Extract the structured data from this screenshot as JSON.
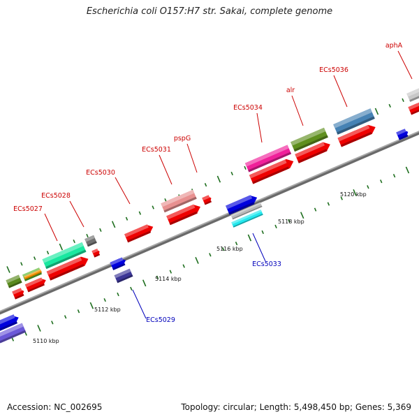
{
  "title": "Escherichia coli O157:H7 str. Sakai, complete genome",
  "footer": {
    "accession": "Accession: NC_002695",
    "summary": "Topology: circular; Length: 5,498,450 bp; Genes: 5,369"
  },
  "colors": {
    "backbone": "#8c8c8c",
    "tick": "#1e6e1e",
    "forward_label": "#cc0000",
    "reverse_label": "#0000bb"
  },
  "scale_labels": [
    "5110 kbp",
    "5112 kbp",
    "5114 kbp",
    "5116 kbp",
    "5118 kbp",
    "5120 kbp"
  ],
  "gene_labels": [
    {
      "text": "ECs5027",
      "strand": "forward"
    },
    {
      "text": "ECs5028",
      "strand": "forward"
    },
    {
      "text": "ECs5030",
      "strand": "forward"
    },
    {
      "text": "ECs5031",
      "strand": "forward"
    },
    {
      "text": "pspG",
      "strand": "forward"
    },
    {
      "text": "ECs5034",
      "strand": "forward"
    },
    {
      "text": "alr",
      "strand": "forward"
    },
    {
      "text": "ECs5036",
      "strand": "forward"
    },
    {
      "text": "aphA",
      "strand": "forward"
    },
    {
      "text": "ECs5029",
      "strand": "reverse"
    },
    {
      "text": "ECs5033",
      "strand": "reverse"
    }
  ]
}
